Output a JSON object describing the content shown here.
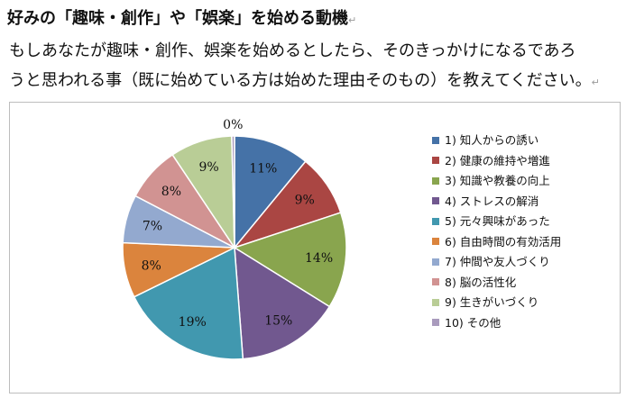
{
  "heading": "好みの「趣味・創作」や「娯楽」を始める動機",
  "description_line1": "もしあなたが趣味・創作、娯楽を始めるとしたら、そのきっかけになるであろ",
  "description_line2": "うと思われる事（既に始めている方は始めた理由そのもの）を教えてください。",
  "paragraph_mark": "↵",
  "chart_data": {
    "type": "pie",
    "categories": [
      "1) 知人からの誘い",
      "2) 健康の維持や増進",
      "3) 知識や教養の向上",
      "4) ストレスの解消",
      "5) 元々興味があった",
      "6) 自由時間の有効活用",
      "7) 仲間や友人づくり",
      "8) 脳の活性化",
      "9) 生きがいづくり",
      "10) その他"
    ],
    "values": [
      11,
      9,
      14,
      15,
      19,
      8,
      7,
      8,
      9,
      0.4
    ],
    "labels": [
      "11%",
      "9%",
      "14%",
      "15%",
      "19%",
      "8%",
      "7%",
      "8%",
      "9%",
      "0%"
    ],
    "colors": [
      "#4572A7",
      "#AA4643",
      "#89A54E",
      "#71588F",
      "#4198AF",
      "#DB843D",
      "#93A9CF",
      "#D19392",
      "#B9CD96",
      "#A99BBD"
    ],
    "start_angle": "12 o'clock",
    "direction": "clockwise",
    "legend_position": "right"
  }
}
